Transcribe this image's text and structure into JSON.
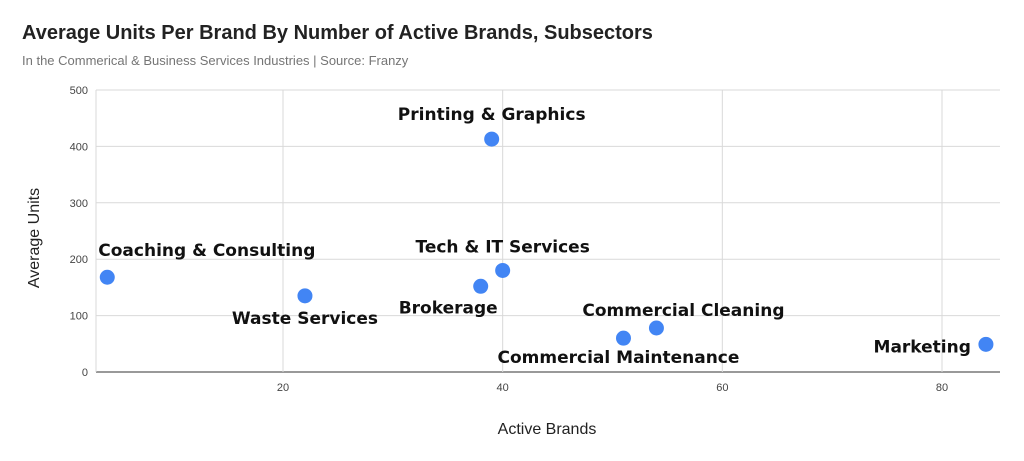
{
  "chart_data": {
    "type": "scatter",
    "title": "Average Units Per Brand By Number of Active Brands, Subsectors",
    "subtitle": "In the Commerical & Business Services Industries | Source: Franzy",
    "xlabel": "Active Brands",
    "ylabel": "Average Units",
    "xlim": [
      2,
      85
    ],
    "ylim": [
      0,
      500
    ],
    "x_ticks": [
      20,
      40,
      60,
      80
    ],
    "y_ticks": [
      0,
      100,
      200,
      300,
      400,
      500
    ],
    "grid": true,
    "point_color": "#4285F4",
    "points": [
      {
        "label": "Printing & Graphics",
        "x": 39,
        "y": 413
      },
      {
        "label": "Coaching & Consulting",
        "x": 4,
        "y": 168
      },
      {
        "label": "Tech & IT Services",
        "x": 40,
        "y": 180
      },
      {
        "label": "Brokerage",
        "x": 38,
        "y": 152
      },
      {
        "label": "Waste Services",
        "x": 22,
        "y": 135
      },
      {
        "label": "Commercial Cleaning",
        "x": 54,
        "y": 78
      },
      {
        "label": "Commercial Maintenance",
        "x": 51,
        "y": 60
      },
      {
        "label": "Marketing",
        "x": 84,
        "y": 49
      }
    ]
  }
}
